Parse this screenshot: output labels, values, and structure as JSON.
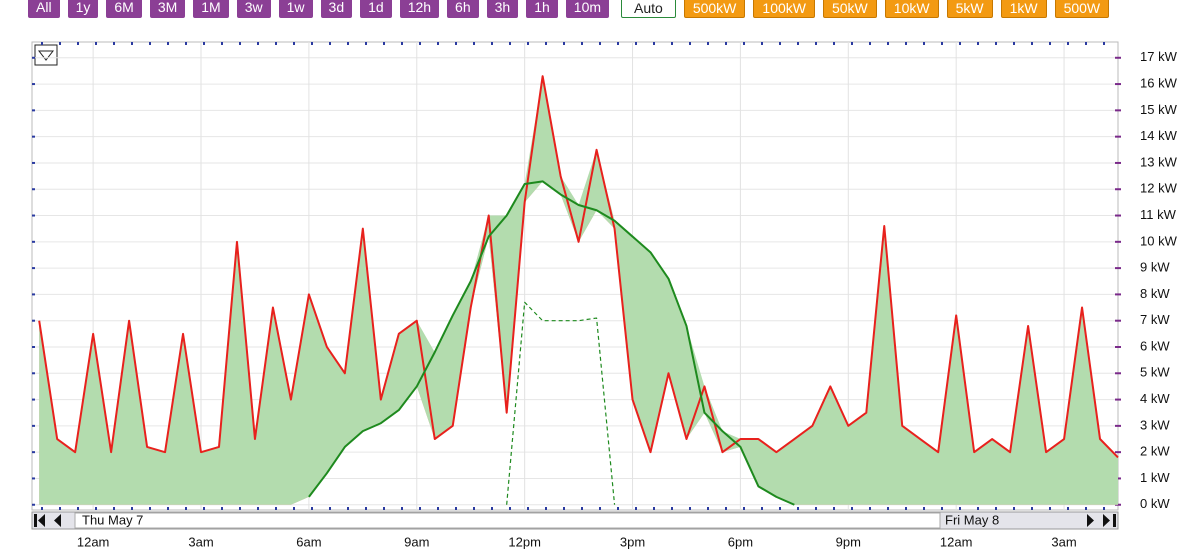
{
  "range_buttons": [
    "All",
    "1y",
    "6M",
    "3M",
    "1M",
    "3w",
    "1w",
    "3d",
    "1d",
    "12h",
    "6h",
    "3h",
    "1h",
    "10m"
  ],
  "auto_button": "Auto",
  "scale_buttons": [
    "500kW",
    "100kW",
    "50kW",
    "10kW",
    "5kW",
    "1kW",
    "500W"
  ],
  "navigator": {
    "start_label": "Thu May 7",
    "end_label": "Fri May 8"
  },
  "chart_data": {
    "type": "area",
    "x": [
      -1.5,
      -1,
      -0.5,
      0,
      0.5,
      1,
      1.5,
      2,
      2.5,
      3,
      3.5,
      4,
      4.5,
      5,
      5.5,
      6,
      6.5,
      7,
      7.5,
      8,
      8.5,
      9,
      9.5,
      10,
      10.5,
      11,
      11.5,
      12,
      12.5,
      13,
      13.5,
      14,
      14.5,
      15,
      15.5,
      16,
      16.5,
      17,
      17.5,
      18,
      18.5,
      19,
      19.5,
      20,
      20.5,
      21,
      21.5,
      22,
      22.5,
      23,
      23.5,
      24,
      24.5,
      25,
      25.5,
      26,
      26.5,
      27,
      27.5,
      28,
      28.5
    ],
    "series": [
      {
        "color": "#e8211d",
        "fill": "#f7a8a6",
        "values": [
          7,
          2.5,
          2,
          6.5,
          2,
          7,
          2.2,
          2,
          6.5,
          2,
          2.2,
          10,
          2.5,
          7.5,
          4,
          8,
          6,
          5,
          10.5,
          4,
          6.5,
          7,
          2.5,
          3,
          7.5,
          11,
          3.5,
          11.5,
          16.3,
          12.5,
          10,
          13.5,
          10.5,
          4,
          2,
          5,
          2.5,
          4.5,
          2,
          2.5,
          2.5,
          2,
          2.5,
          3,
          4.5,
          3,
          3.5,
          10.6,
          3,
          2.5,
          2,
          7.2,
          2,
          2.5,
          2,
          6.8,
          2,
          2.5,
          7.5,
          2.5,
          1.8
        ]
      },
      {
        "color": "#1e8a1e",
        "fill": "#b3dcae",
        "values": [
          null,
          null,
          null,
          null,
          null,
          null,
          null,
          null,
          null,
          null,
          null,
          null,
          null,
          null,
          null,
          0.3,
          1.2,
          2.2,
          2.8,
          3.1,
          3.6,
          4.5,
          5.8,
          7.2,
          8.5,
          10.2,
          11,
          12.2,
          12.3,
          11.8,
          11.4,
          11.2,
          10.8,
          10.2,
          9.6,
          8.6,
          6.8,
          3.5,
          2.8,
          2.2,
          0.7,
          0.3,
          0,
          null,
          null,
          null,
          null,
          null,
          null,
          null,
          null,
          null,
          null,
          null,
          null,
          null,
          null,
          null,
          null,
          null,
          null
        ]
      },
      {
        "color": "#1e8a1e",
        "dashed": true,
        "values": [
          null,
          null,
          null,
          null,
          null,
          null,
          null,
          null,
          null,
          null,
          null,
          null,
          null,
          null,
          null,
          null,
          null,
          null,
          null,
          null,
          null,
          null,
          null,
          null,
          null,
          null,
          0,
          7.7,
          7,
          7,
          7,
          7.1,
          0,
          null,
          null,
          null,
          null,
          null,
          null,
          null,
          null,
          null,
          null,
          null,
          null,
          null,
          null,
          null,
          null,
          null,
          null,
          null,
          null,
          null,
          null,
          null,
          null,
          null,
          null,
          null,
          null
        ]
      }
    ],
    "xlim": [
      -1.7,
      28.5
    ],
    "xticks": [
      {
        "value": 0,
        "label": "12am"
      },
      {
        "value": 3,
        "label": "3am"
      },
      {
        "value": 6,
        "label": "6am"
      },
      {
        "value": 9,
        "label": "9am"
      },
      {
        "value": 12,
        "label": "12pm"
      },
      {
        "value": 15,
        "label": "3pm"
      },
      {
        "value": 18,
        "label": "6pm"
      },
      {
        "value": 21,
        "label": "9pm"
      },
      {
        "value": 24,
        "label": "12am"
      },
      {
        "value": 27,
        "label": "3am"
      }
    ],
    "ylim": [
      -0.2,
      17.6
    ],
    "yticks": [
      {
        "value": 0,
        "label": "0 kW"
      },
      {
        "value": 1,
        "label": "1 kW"
      },
      {
        "value": 2,
        "label": "2 kW"
      },
      {
        "value": 3,
        "label": "3 kW"
      },
      {
        "value": 4,
        "label": "4 kW"
      },
      {
        "value": 5,
        "label": "5 kW"
      },
      {
        "value": 6,
        "label": "6 kW"
      },
      {
        "value": 7,
        "label": "7 kW"
      },
      {
        "value": 8,
        "label": "8 kW"
      },
      {
        "value": 9,
        "label": "9 kW"
      },
      {
        "value": 10,
        "label": "10 kW"
      },
      {
        "value": 11,
        "label": "11 kW"
      },
      {
        "value": 12,
        "label": "12 kW"
      },
      {
        "value": 13,
        "label": "13 kW"
      },
      {
        "value": 14,
        "label": "14 kW"
      },
      {
        "value": 15,
        "label": "15 kW"
      },
      {
        "value": 16,
        "label": "16 kW"
      },
      {
        "value": 17,
        "label": "17 kW"
      }
    ],
    "grid": true
  }
}
